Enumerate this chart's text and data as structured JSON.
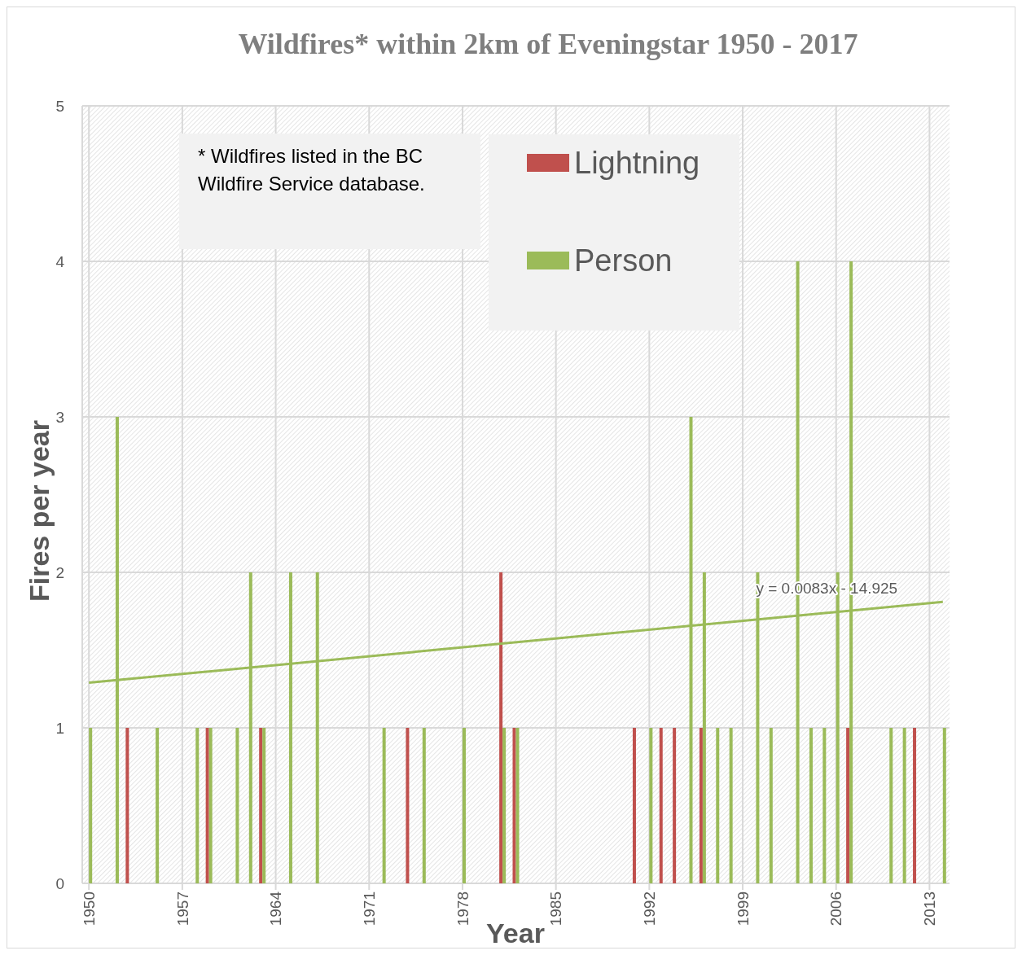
{
  "chart_data": {
    "type": "bar",
    "title": "Wildfires* within 2km of Eveningstar 1950 - 2017",
    "xlabel": "Year",
    "ylabel": "Fires per year",
    "x": [
      1950,
      1951,
      1952,
      1953,
      1954,
      1955,
      1956,
      1957,
      1958,
      1959,
      1960,
      1961,
      1962,
      1963,
      1964,
      1965,
      1966,
      1967,
      1968,
      1969,
      1970,
      1971,
      1972,
      1973,
      1974,
      1975,
      1976,
      1977,
      1978,
      1979,
      1980,
      1981,
      1982,
      1983,
      1984,
      1985,
      1986,
      1987,
      1988,
      1989,
      1990,
      1991,
      1992,
      1993,
      1994,
      1995,
      1996,
      1997,
      1998,
      1999,
      2000,
      2001,
      2002,
      2003,
      2004,
      2005,
      2006,
      2007,
      2008,
      2009,
      2010,
      2011,
      2012,
      2013,
      2014
    ],
    "series": [
      {
        "name": "Lightning",
        "color": "#c0504d",
        "values": [
          0,
          0,
          0,
          1,
          0,
          0,
          0,
          0,
          0,
          1,
          0,
          0,
          0,
          1,
          0,
          0,
          0,
          0,
          0,
          0,
          0,
          0,
          0,
          0,
          1,
          0,
          0,
          0,
          0,
          0,
          0,
          2,
          1,
          0,
          0,
          0,
          0,
          0,
          0,
          0,
          0,
          1,
          0,
          1,
          1,
          0,
          1,
          0,
          0,
          0,
          0,
          0,
          0,
          0,
          0,
          0,
          0,
          1,
          0,
          0,
          0,
          0,
          1,
          0,
          0
        ]
      },
      {
        "name": "Person",
        "color": "#9bbb59",
        "values": [
          1,
          0,
          3,
          0,
          0,
          1,
          0,
          0,
          1,
          1,
          0,
          1,
          2,
          1,
          0,
          2,
          0,
          2,
          0,
          0,
          0,
          0,
          1,
          0,
          0,
          1,
          0,
          0,
          1,
          0,
          0,
          1,
          1,
          0,
          0,
          0,
          0,
          0,
          0,
          0,
          0,
          0,
          1,
          0,
          0,
          3,
          2,
          1,
          1,
          0,
          2,
          1,
          0,
          4,
          1,
          1,
          2,
          4,
          0,
          0,
          1,
          1,
          0,
          0,
          1
        ]
      },
      {
        "type": "line",
        "color": "#9bbb59",
        "x": [
          1950,
          2014
        ],
        "values": [
          1.29,
          1.81
        ]
      }
    ],
    "xlim": [
      1949.5,
      2014.5
    ],
    "xticks": [
      1950,
      1957,
      1964,
      1971,
      1978,
      1985,
      1992,
      1999,
      2006,
      2013
    ],
    "ylim": [
      0,
      5
    ],
    "yticks": [
      0,
      1,
      2,
      3,
      4,
      5
    ],
    "grid": true,
    "legend": "top",
    "annotations": [
      "* Wildfires listed in the BC Wildfire Service database.",
      {
        "text": "y = 0.0083x - 14.925",
        "x": 2000,
        "y": 1.9
      }
    ]
  }
}
